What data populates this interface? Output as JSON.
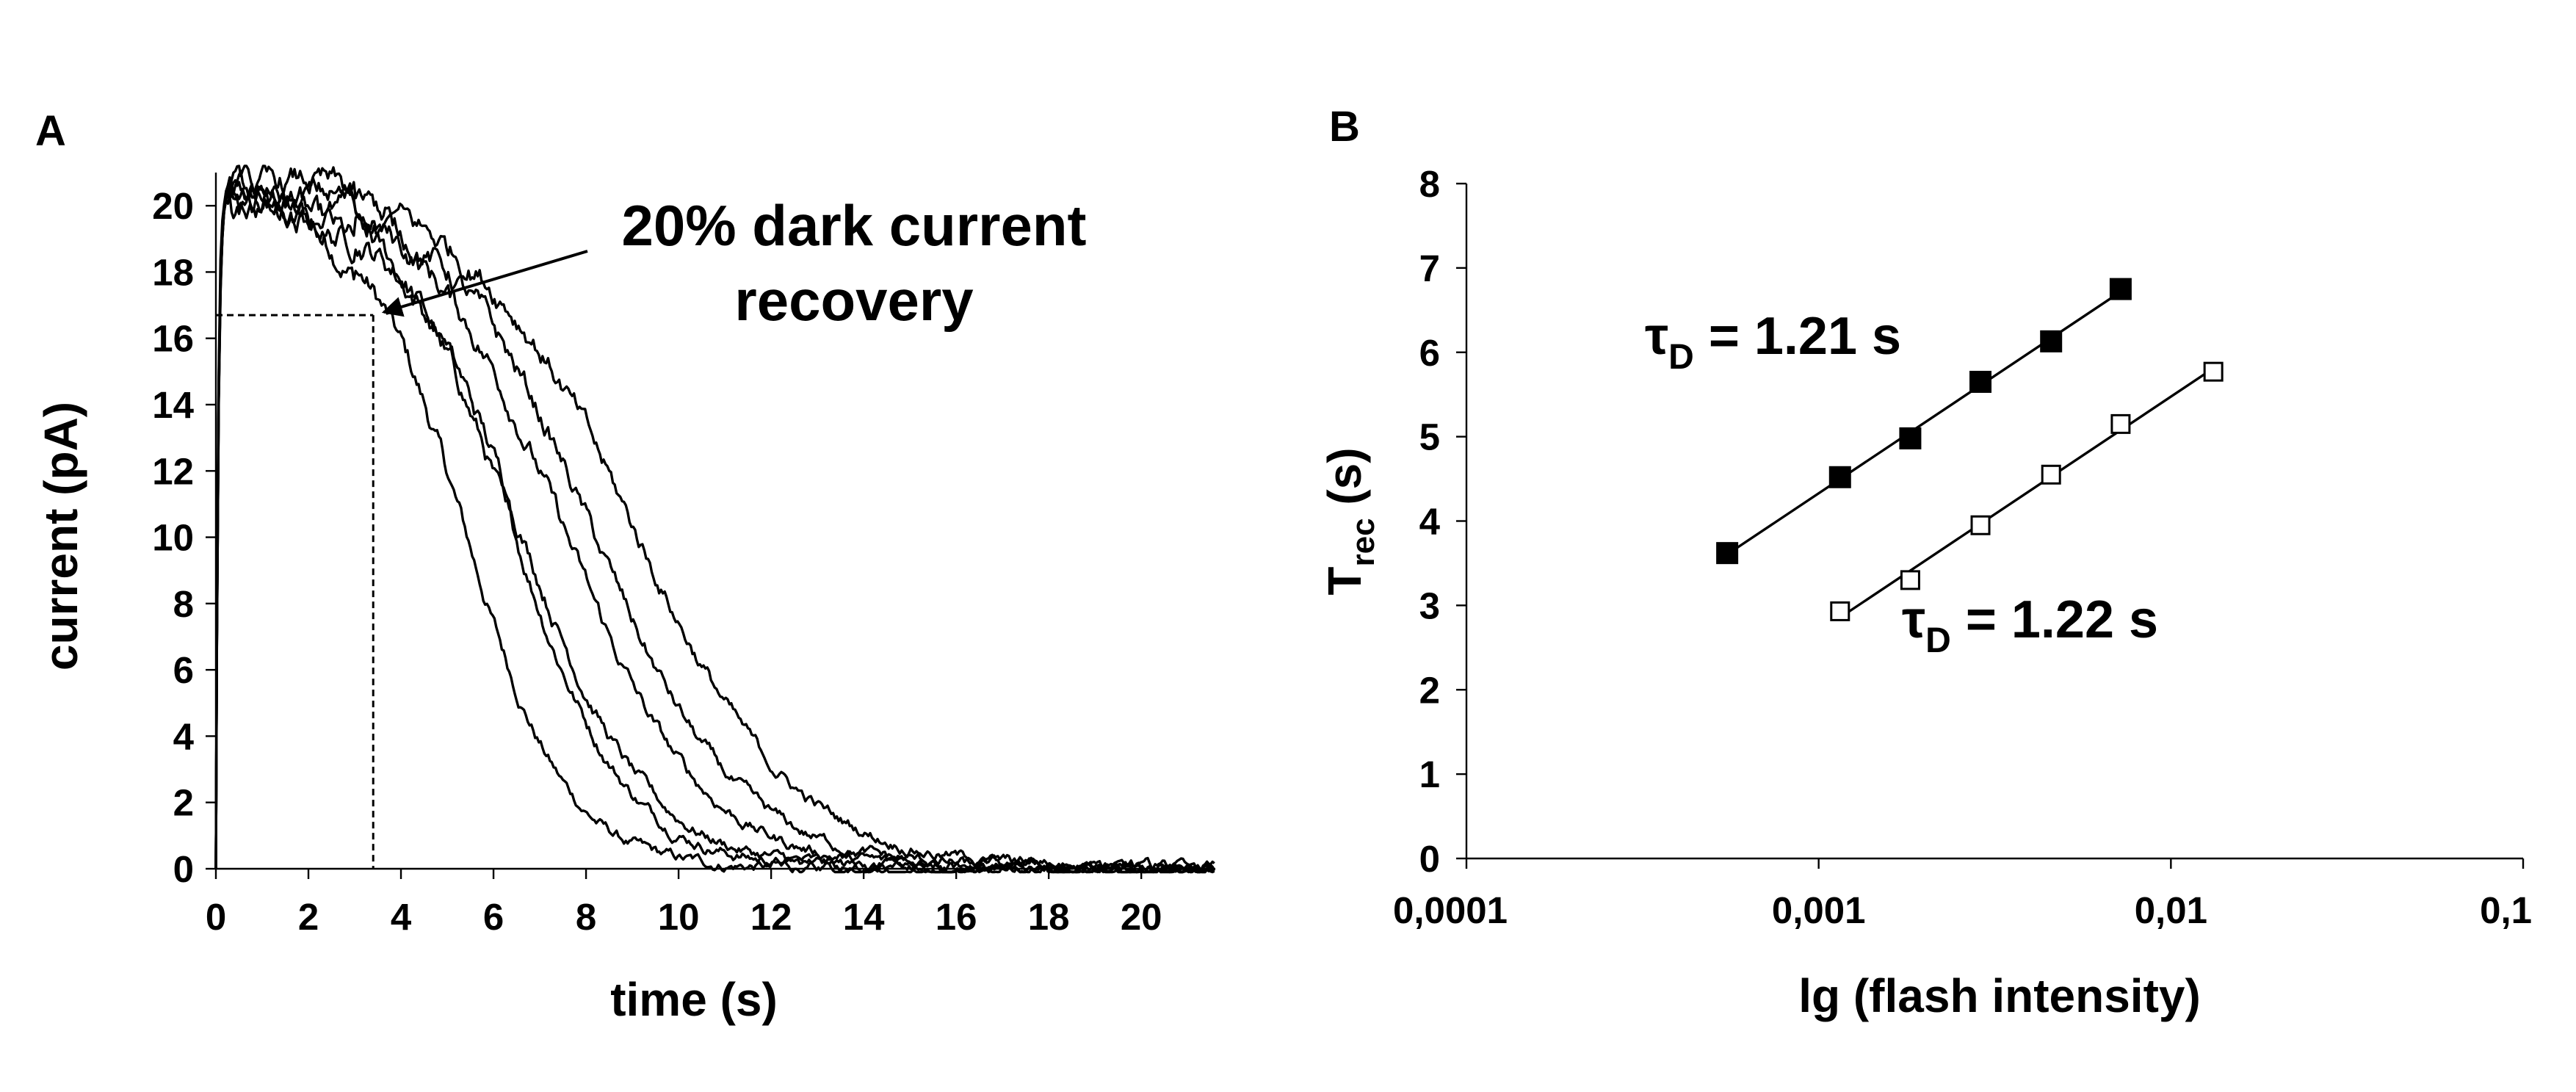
{
  "chart_data": [
    {
      "panel_label": "A",
      "type": "line",
      "xlabel": "time (s)",
      "ylabel": "current (pA)",
      "xlim": [
        0,
        21.6
      ],
      "ylim": [
        0,
        21
      ],
      "xticks": [
        0,
        2,
        4,
        6,
        8,
        10,
        12,
        14,
        16,
        18,
        20
      ],
      "yticks": [
        0,
        2,
        4,
        6,
        8,
        10,
        12,
        14,
        16,
        18,
        20
      ],
      "grid": false,
      "annotation": {
        "line1": "20% dark current",
        "line2": "recovery",
        "target": {
          "x": 3.5,
          "y": 16.7
        }
      },
      "guide_point": {
        "x": 3.4,
        "y": 16.7
      },
      "series": [
        {
          "plateau": 20.2,
          "t_half": 5.4,
          "width": 1.1
        },
        {
          "plateau": 20.5,
          "t_half": 6.4,
          "width": 1.25
        },
        {
          "plateau": 20.4,
          "t_half": 6.6,
          "width": 1.35
        },
        {
          "plateau": 20.6,
          "t_half": 7.5,
          "width": 1.5
        },
        {
          "plateau": 20.6,
          "t_half": 8.1,
          "width": 1.6
        },
        {
          "plateau": 20.7,
          "t_half": 9.0,
          "width": 1.75
        }
      ]
    },
    {
      "panel_label": "B",
      "type": "scatter",
      "xlabel": "lg (flash intensity)",
      "ylabel_main": "T",
      "ylabel_sub": "rec",
      "ylabel_unit": " (s)",
      "xscale": "log",
      "xlim": [
        0.0001,
        0.1
      ],
      "ylim": [
        0,
        8
      ],
      "xticks": [
        "0,0001",
        "0,001",
        "0,01",
        "0,1"
      ],
      "yticks": [
        0,
        1,
        2,
        3,
        4,
        5,
        6,
        7,
        8
      ],
      "grid": false,
      "series": [
        {
          "marker": "filled-square",
          "x": [
            0.00055,
            0.00115,
            0.00182,
            0.00288,
            0.00457,
            0.0072
          ],
          "y": [
            3.62,
            4.52,
            4.98,
            5.65,
            6.13,
            6.75
          ],
          "label_tau": "τ",
          "label_sub": "D",
          "label_value": " = 1.21 s"
        },
        {
          "marker": "open-square",
          "x": [
            0.00115,
            0.00182,
            0.00288,
            0.00457,
            0.0072,
            0.0132
          ],
          "y": [
            2.93,
            3.3,
            3.95,
            4.55,
            5.15,
            5.77
          ],
          "label_tau": "τ",
          "label_sub": "D",
          "label_value": " = 1.22 s"
        }
      ]
    }
  ]
}
